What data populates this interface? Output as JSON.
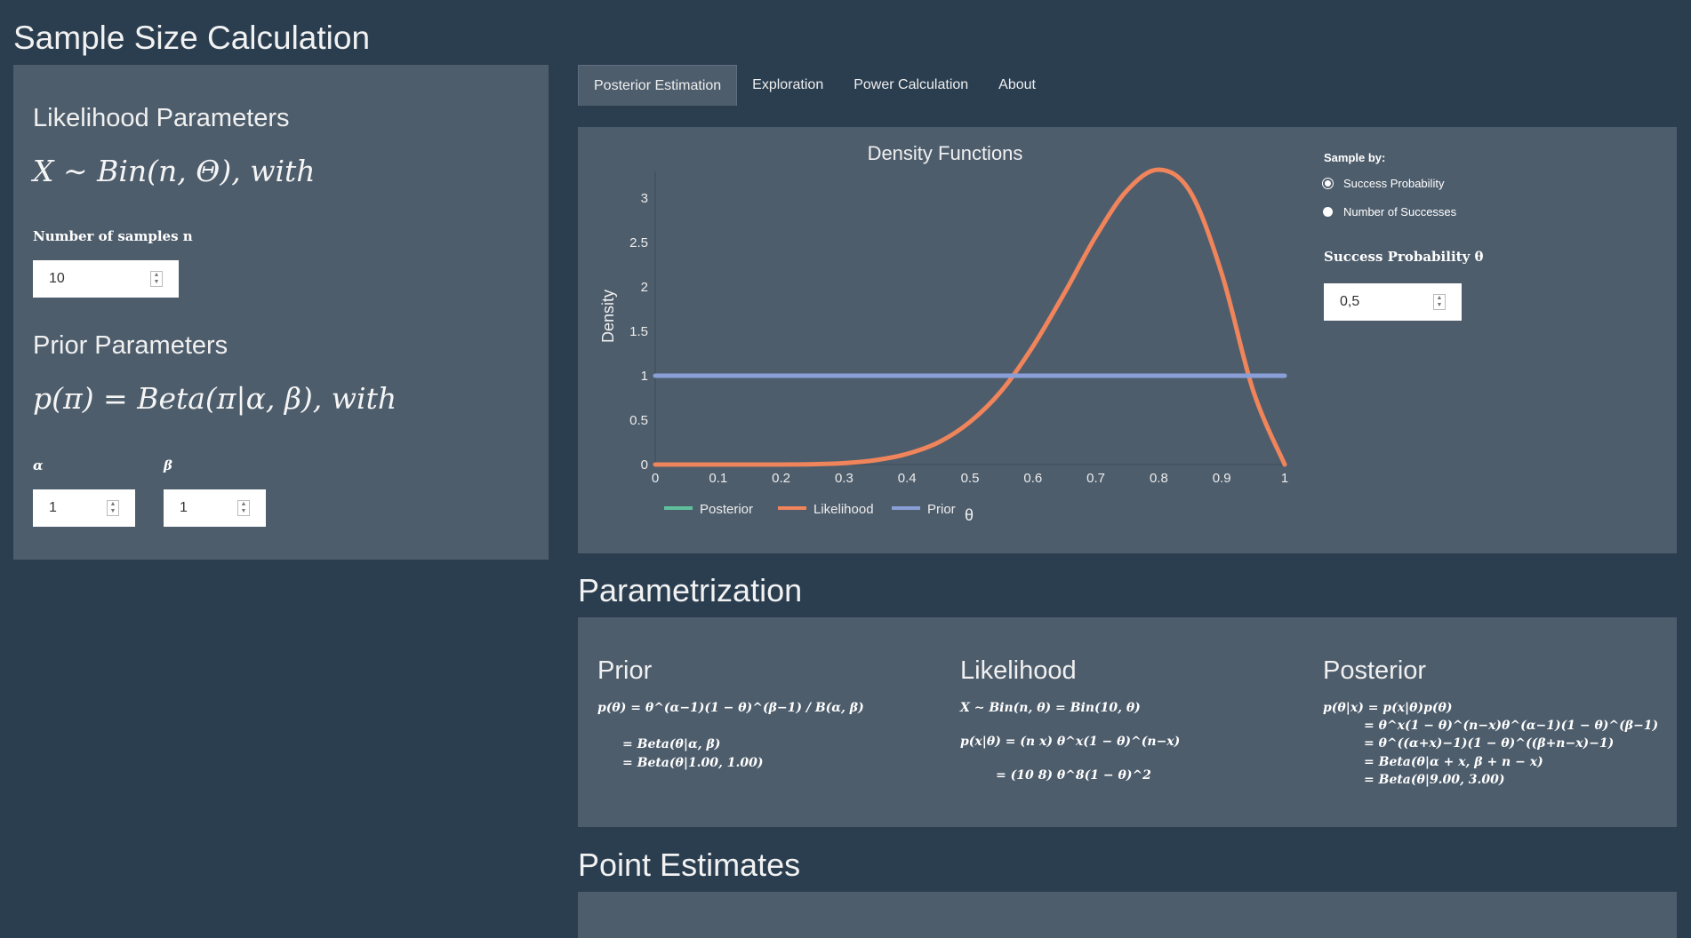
{
  "app_title": "Sample Size Calculation",
  "sidebar": {
    "likelihood_heading": "Likelihood Parameters",
    "likelihood_formula": "X ∼ Bin(n, Θ), with",
    "n_label": "Number of samples n",
    "n_value": "10",
    "prior_heading": "Prior Parameters",
    "prior_formula": "p(π) = Beta(π|α, β), with",
    "alpha_label": "α",
    "alpha_value": "1",
    "beta_label": "β",
    "beta_value": "1"
  },
  "tabs": [
    {
      "label": "Posterior Estimation",
      "active": true
    },
    {
      "label": "Exploration",
      "active": false
    },
    {
      "label": "Power Calculation",
      "active": false
    },
    {
      "label": "About",
      "active": false
    }
  ],
  "controls": {
    "sample_by_label": "Sample by:",
    "options": [
      {
        "label": "Success Probability",
        "checked": true
      },
      {
        "label": "Number of Successes",
        "checked": false
      }
    ],
    "success_prob_label": "Success Probability θ",
    "success_prob_value": "0,5"
  },
  "chart_data": {
    "type": "line",
    "title": "Density Functions",
    "xlabel": "θ",
    "ylabel": "Density",
    "xlim": [
      0,
      1
    ],
    "ylim": [
      0,
      3.3
    ],
    "x_ticks": [
      "0",
      "0.1",
      "0.2",
      "0.3",
      "0.4",
      "0.5",
      "0.6",
      "0.7",
      "0.8",
      "0.9",
      "1"
    ],
    "y_ticks": [
      "0",
      "0.5",
      "1",
      "1.5",
      "2",
      "2.5",
      "3"
    ],
    "legend_position": "bottom-left",
    "series": [
      {
        "name": "Posterior",
        "color": "#5fc19c",
        "x": [],
        "y": []
      },
      {
        "name": "Likelihood",
        "color": "#f0845a",
        "x": [
          0,
          0.05,
          0.1,
          0.15,
          0.2,
          0.25,
          0.3,
          0.35,
          0.4,
          0.45,
          0.5,
          0.55,
          0.6,
          0.65,
          0.7,
          0.75,
          0.8,
          0.85,
          0.9,
          0.95,
          1
        ],
        "y": [
          0,
          0,
          0,
          0,
          0,
          0.004,
          0.016,
          0.05,
          0.12,
          0.25,
          0.48,
          0.83,
          1.33,
          1.93,
          2.57,
          3.09,
          3.32,
          3.07,
          2.15,
          0.83,
          0
        ]
      },
      {
        "name": "Prior",
        "color": "#8a9fd8",
        "x": [
          0,
          1
        ],
        "y": [
          1,
          1
        ]
      }
    ]
  },
  "parametrization_title": "Parametrization",
  "params": {
    "prior_heading": "Prior",
    "prior_lines": [
      "p(θ) = θ^(α−1)(1 − θ)^(β−1) / B(α, β)",
      "= Beta(θ|α, β)",
      "= Beta(θ|1.00, 1.00)"
    ],
    "likelihood_heading": "Likelihood",
    "likelihood_lines": [
      "X ∼ Bin(n, θ) = Bin(10, θ)",
      "p(x|θ) = (n x) θ^x(1 − θ)^(n−x)",
      "= (10 8) θ^8(1 − θ)^2"
    ],
    "posterior_heading": "Posterior",
    "posterior_lines": [
      "p(θ|x) = p(x|θ)p(θ)",
      "= θ^x(1 − θ)^(n−x)θ^(α−1)(1 − θ)^(β−1)",
      "= θ^((α+x)−1)(1 − θ)^((β+n−x)−1)",
      "= Beta(θ|α + x, β + n − x)",
      "= Beta(θ|9.00, 3.00)"
    ]
  },
  "point_estimates_title": "Point Estimates"
}
